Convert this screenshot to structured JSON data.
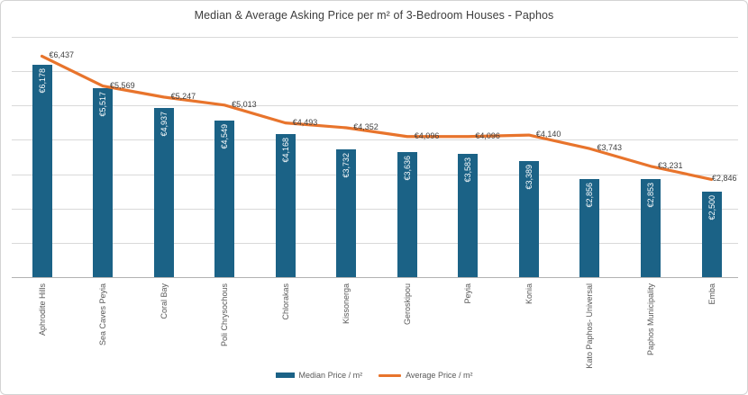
{
  "chart_data": {
    "type": "bar",
    "title": "Median & Average Asking Price per m² of 3-Bedroom Houses - Paphos",
    "categories": [
      "Aphrodite Hills",
      "Sea Caves Peyia",
      "Coral Bay",
      "Poli Chrysochous",
      "Chlorakas",
      "Kissonerga",
      "Geroskipou",
      "Peyia",
      "Konia",
      "Kato Paphos- Universal",
      "Paphos Municipality",
      "Emba"
    ],
    "series": [
      {
        "name": "Median Price / m²",
        "type": "bar",
        "color": "#1b6286",
        "values": [
          6178,
          5517,
          4937,
          4549,
          4168,
          3732,
          3636,
          3583,
          3389,
          2856,
          2853,
          2500
        ]
      },
      {
        "name": "Average Price / m²",
        "type": "line",
        "color": "#e8742c",
        "values": [
          6437,
          5569,
          5247,
          5013,
          4493,
          4352,
          4096,
          4096,
          4140,
          3743,
          3231,
          2846
        ]
      }
    ],
    "ylim": [
      0,
      7000
    ],
    "gridline_step": 1000,
    "grid": true,
    "y_axis_labels_visible": false,
    "value_prefix": "€",
    "data_labels": true,
    "legend_position": "bottom"
  },
  "colors": {
    "bar": "#1b6286",
    "line": "#e8742c",
    "gridline": "#d9d9d9",
    "axis_line": "#b3b3b3",
    "data_label_text": "#404040",
    "axis_text": "#595959",
    "bar_label_text": "#ffffff",
    "frame_border": "#d3d3d3"
  }
}
